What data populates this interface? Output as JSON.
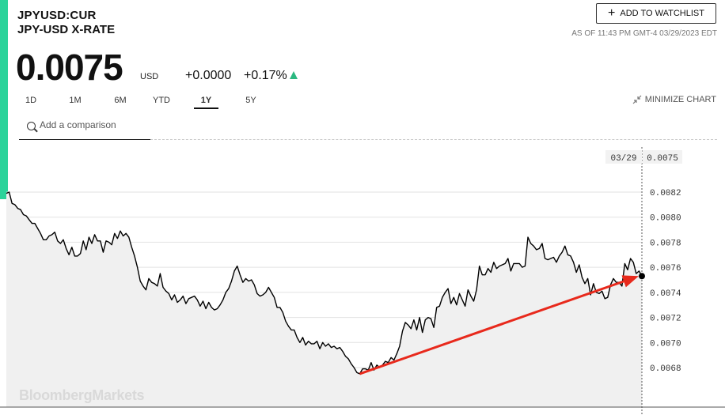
{
  "header": {
    "ticker": "JPYUSD:CUR",
    "name": "JPY-USD X-RATE",
    "price": "0.0075",
    "currency": "USD",
    "change": "+0.0000",
    "change_pct": "+0.17%",
    "change_direction": "up",
    "watchlist_label": "ADD TO WATCHLIST",
    "as_of": "AS OF 11:43 PM GMT-4 03/29/2023 EDT"
  },
  "tabs": [
    {
      "label": "1D",
      "active": false
    },
    {
      "label": "1M",
      "active": false
    },
    {
      "label": "6M",
      "active": false
    },
    {
      "label": "YTD",
      "active": false
    },
    {
      "label": "1Y",
      "active": true
    },
    {
      "label": "5Y",
      "active": false
    }
  ],
  "minimize_label": "MINIMIZE CHART",
  "compare": {
    "placeholder": "Add a comparison"
  },
  "watermark": "BloombergMarkets",
  "colors": {
    "accent": "#2bd39a",
    "up": "#2bb880",
    "annotation": "#e8291c",
    "line": "#000000",
    "area": "#f0f0f0"
  },
  "chart_data": {
    "type": "area",
    "title": "",
    "xlabel": "",
    "ylabel": "",
    "ylim": [
      0.00665,
      0.00835
    ],
    "yticks": [
      "0.0068",
      "0.0070",
      "0.0072",
      "0.0074",
      "0.0076",
      "0.0078",
      "0.0080",
      "0.0082"
    ],
    "cursor": {
      "date": "03/29",
      "value": "0.0075"
    },
    "grid": true,
    "series": [
      {
        "values": [
          0.00819,
          0.0082,
          0.00811,
          0.0081,
          0.00807,
          0.00806,
          0.00802,
          0.00801,
          0.00798,
          0.00795,
          0.00795,
          0.00791,
          0.00787,
          0.00782,
          0.00782,
          0.00785,
          0.00786,
          0.00788,
          0.00781,
          0.00779,
          0.00782,
          0.00775,
          0.0077,
          0.00776,
          0.00769,
          0.00769,
          0.00771,
          0.00781,
          0.00774,
          0.00784,
          0.00779,
          0.00786,
          0.00781,
          0.00781,
          0.00772,
          0.00781,
          0.0078,
          0.00778,
          0.00787,
          0.00783,
          0.00789,
          0.00785,
          0.00787,
          0.00784,
          0.00776,
          0.00769,
          0.0076,
          0.00749,
          0.00745,
          0.00742,
          0.00751,
          0.00748,
          0.00747,
          0.00745,
          0.00755,
          0.00744,
          0.00741,
          0.00739,
          0.00734,
          0.00738,
          0.00732,
          0.00734,
          0.00737,
          0.00731,
          0.00735,
          0.00736,
          0.00737,
          0.00734,
          0.00729,
          0.00733,
          0.00727,
          0.00732,
          0.00728,
          0.00726,
          0.00727,
          0.0073,
          0.00734,
          0.0074,
          0.00743,
          0.00749,
          0.00757,
          0.00761,
          0.00754,
          0.00748,
          0.00751,
          0.00749,
          0.0075,
          0.00746,
          0.00739,
          0.00737,
          0.00738,
          0.0074,
          0.00744,
          0.0074,
          0.00736,
          0.00728,
          0.00728,
          0.00724,
          0.00717,
          0.00713,
          0.0071,
          0.0071,
          0.00704,
          0.007,
          0.00704,
          0.00698,
          0.00701,
          0.00699,
          0.00699,
          0.00701,
          0.00695,
          0.007,
          0.00697,
          0.00699,
          0.00696,
          0.00697,
          0.00695,
          0.00696,
          0.00693,
          0.00689,
          0.00687,
          0.00683,
          0.0068,
          0.00676,
          0.00675,
          0.00679,
          0.00679,
          0.00678,
          0.00684,
          0.00678,
          0.00682,
          0.0068,
          0.00682,
          0.00685,
          0.00684,
          0.00688,
          0.00686,
          0.00691,
          0.00697,
          0.00709,
          0.00716,
          0.00714,
          0.00711,
          0.00718,
          0.0071,
          0.0072,
          0.00708,
          0.00718,
          0.0072,
          0.00719,
          0.00712,
          0.00728,
          0.00729,
          0.00736,
          0.0074,
          0.00743,
          0.00731,
          0.00736,
          0.0073,
          0.00739,
          0.00734,
          0.00729,
          0.00742,
          0.00737,
          0.00733,
          0.00742,
          0.00761,
          0.00754,
          0.00754,
          0.00759,
          0.00756,
          0.00764,
          0.00759,
          0.00761,
          0.00762,
          0.00763,
          0.00767,
          0.00757,
          0.00763,
          0.00763,
          0.00763,
          0.0076,
          0.00761,
          0.00784,
          0.00779,
          0.00777,
          0.00774,
          0.00775,
          0.00779,
          0.00767,
          0.00766,
          0.00767,
          0.00768,
          0.00764,
          0.00769,
          0.00772,
          0.00777,
          0.0077,
          0.00769,
          0.00764,
          0.00756,
          0.00762,
          0.00752,
          0.00747,
          0.00751,
          0.00738,
          0.00747,
          0.0074,
          0.00739,
          0.00741,
          0.00735,
          0.00736,
          0.00746,
          0.00751,
          0.00748,
          0.00748,
          0.00745,
          0.00763,
          0.00758,
          0.00767,
          0.00764,
          0.00755,
          0.00757,
          0.00753
        ]
      }
    ],
    "annotation": {
      "type": "arrow",
      "color": "#e8291c",
      "from_value": 0.00675,
      "to_value": 0.00755
    }
  }
}
